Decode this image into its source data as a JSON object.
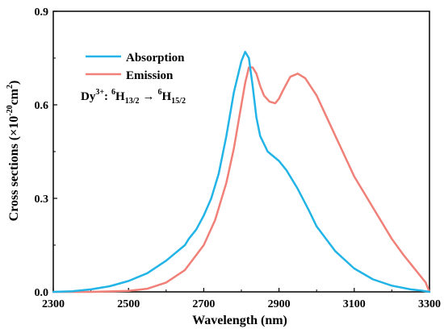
{
  "chart_data": {
    "type": "line",
    "xlabel": "Wavelength (nm)",
    "ylabel_parts": {
      "main": "Cross sections (×10",
      "exp": "-20",
      "unit": "cm",
      "unit_exp": "2",
      "close": ")"
    },
    "xlim": [
      2300,
      3300
    ],
    "ylim": [
      0.0,
      0.9
    ],
    "xticks": [
      2300,
      2500,
      2700,
      2900,
      3100,
      3300
    ],
    "yticks": [
      "0.0",
      "0.3",
      "0.6",
      "0.9"
    ],
    "legend_position": "top-left",
    "annotation": {
      "ion": "Dy",
      "ion_charge": "3+",
      "colon": ":",
      "upper_sup": "6",
      "upper_base": "H",
      "upper_sub": "13/2",
      "arrow": "→",
      "lower_sup": "6",
      "lower_base": "H",
      "lower_sub": "15/2"
    },
    "series": [
      {
        "name": "Absorption",
        "color": "#22b4e6",
        "x": [
          2300,
          2350,
          2400,
          2450,
          2500,
          2550,
          2600,
          2650,
          2660,
          2680,
          2700,
          2720,
          2740,
          2760,
          2780,
          2800,
          2810,
          2820,
          2830,
          2840,
          2850,
          2870,
          2900,
          2920,
          2950,
          2980,
          3000,
          3050,
          3100,
          3150,
          3200,
          3250,
          3280,
          3300
        ],
        "y": [
          0.0,
          0.002,
          0.008,
          0.018,
          0.035,
          0.06,
          0.1,
          0.15,
          0.17,
          0.2,
          0.245,
          0.3,
          0.38,
          0.5,
          0.64,
          0.74,
          0.77,
          0.75,
          0.66,
          0.56,
          0.5,
          0.45,
          0.42,
          0.39,
          0.33,
          0.26,
          0.21,
          0.13,
          0.075,
          0.04,
          0.02,
          0.008,
          0.004,
          0.0
        ]
      },
      {
        "name": "Emission",
        "color": "#f08078",
        "x": [
          2300,
          2400,
          2500,
          2550,
          2600,
          2650,
          2700,
          2730,
          2760,
          2780,
          2800,
          2810,
          2820,
          2830,
          2840,
          2850,
          2860,
          2875,
          2890,
          2900,
          2910,
          2930,
          2950,
          2970,
          3000,
          3050,
          3100,
          3150,
          3200,
          3230,
          3250,
          3270,
          3290,
          3300
        ],
        "y": [
          0.0,
          0.0,
          0.003,
          0.01,
          0.03,
          0.07,
          0.15,
          0.23,
          0.35,
          0.46,
          0.6,
          0.67,
          0.72,
          0.72,
          0.7,
          0.66,
          0.63,
          0.61,
          0.605,
          0.62,
          0.645,
          0.69,
          0.7,
          0.685,
          0.63,
          0.5,
          0.37,
          0.27,
          0.17,
          0.12,
          0.09,
          0.06,
          0.03,
          0.0
        ]
      }
    ]
  }
}
